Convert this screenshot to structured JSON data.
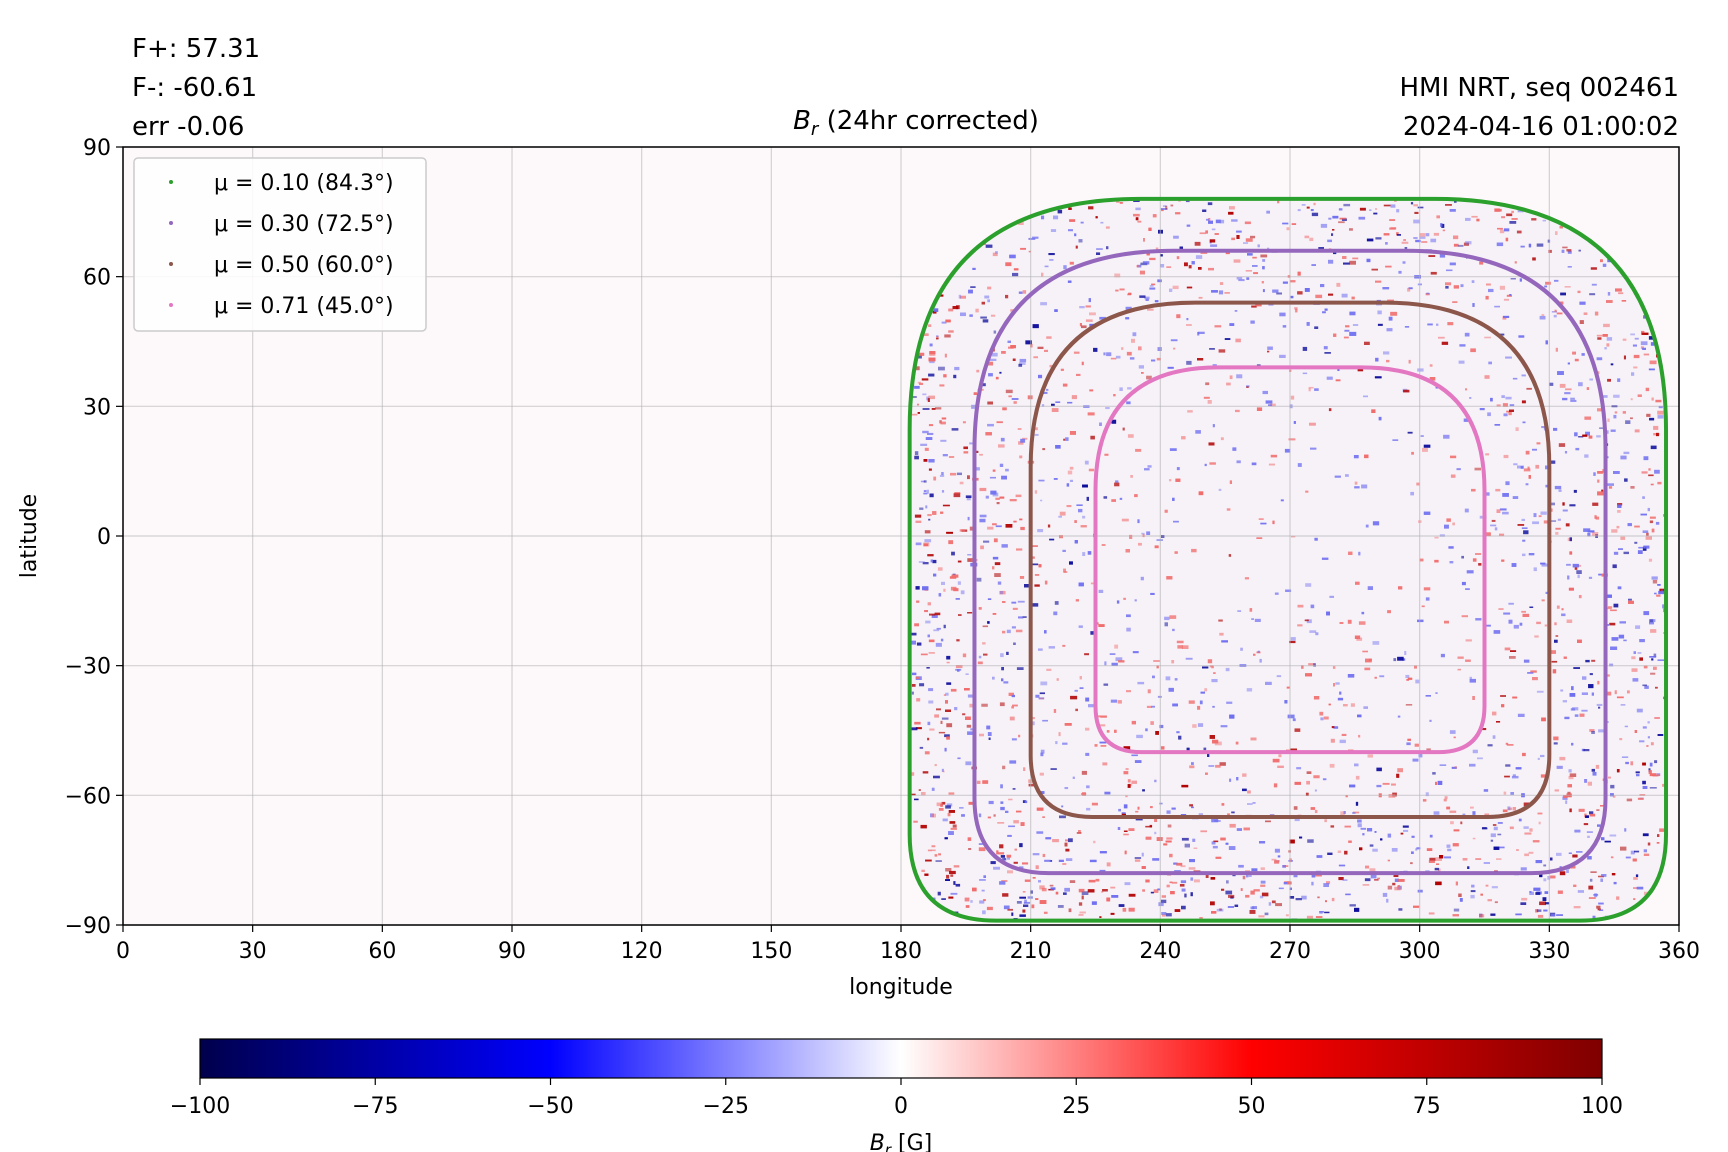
{
  "header": {
    "flux_pos": "F+: 57.31",
    "flux_neg": "F-: -60.61",
    "err": "err -0.06",
    "source": "HMI NRT, seq 002461",
    "timestamp": "2024-04-16 01:00:02"
  },
  "chart_data": {
    "type": "heatmap",
    "title": {
      "symbol": "B",
      "sub": "r",
      "rest": " (24hr corrected)"
    },
    "xlabel": "longitude",
    "ylabel": "latitude",
    "xlim": [
      0,
      360
    ],
    "ylim": [
      -90,
      90
    ],
    "xticks": [
      "0",
      "30",
      "60",
      "90",
      "120",
      "150",
      "180",
      "210",
      "240",
      "270",
      "300",
      "330",
      "360"
    ],
    "yticks": [
      "90",
      "60",
      "30",
      "0",
      "−30",
      "−60",
      "−90"
    ],
    "grid": true,
    "legend_position": "top-left",
    "disk_center": {
      "lon": 270,
      "lat": 0
    },
    "disk_extent": {
      "lon_min": 182,
      "lon_max": 357,
      "lat_min": -89,
      "lat_max": 78
    },
    "contours": [
      {
        "label": "μ = 0.10 (84.3°)",
        "color": "#2ca02c",
        "lon_min": 182,
        "lon_max": 357,
        "lat_min": -89,
        "lat_max": 78
      },
      {
        "label": "μ = 0.30 (72.5°)",
        "color": "#9467bd",
        "lon_min": 197,
        "lon_max": 343,
        "lat_min": -78,
        "lat_max": 66
      },
      {
        "label": "μ = 0.50 (60.0°)",
        "color": "#8c564b",
        "lon_min": 210,
        "lon_max": 330,
        "lat_min": -65,
        "lat_max": 54
      },
      {
        "label": "μ = 0.71 (45.0°)",
        "color": "#e377c2",
        "lon_min": 225,
        "lon_max": 315,
        "lat_min": -50,
        "lat_max": 39
      }
    ],
    "colorbar": {
      "label_symbol": "B",
      "label_sub": "r",
      "label_unit": " [G]",
      "range": [
        -100,
        100
      ],
      "ticks": [
        "−100",
        "−75",
        "−50",
        "−25",
        "0",
        "25",
        "50",
        "75",
        "100"
      ],
      "colors": [
        "#00004c",
        "#0000ff",
        "#ffffff",
        "#ff0000",
        "#7f0000"
      ]
    }
  }
}
